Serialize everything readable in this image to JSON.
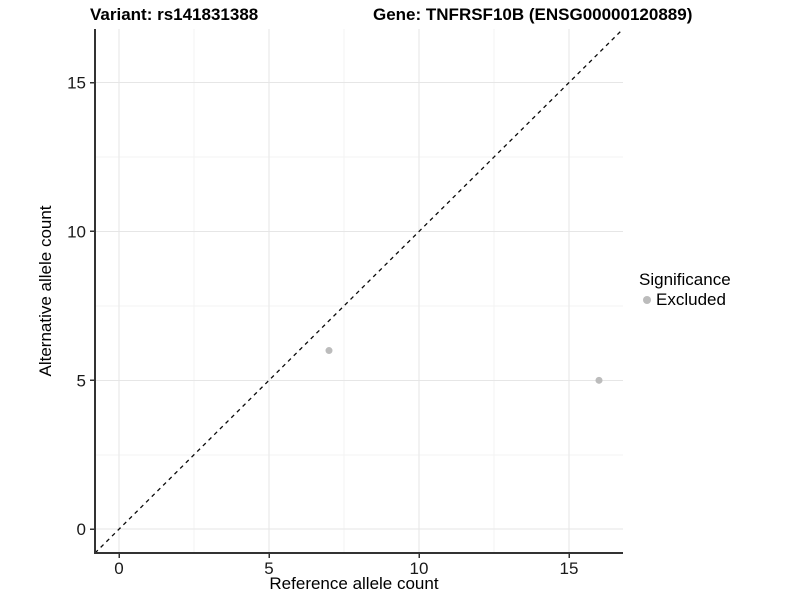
{
  "titles": {
    "variant": "Variant: rs141831388",
    "gene": "Gene: TNFRSF10B (ENSG00000120889)"
  },
  "chart_data": {
    "type": "scatter",
    "xlabel": "Reference allele count",
    "ylabel": "Alternative allele count",
    "xlim": [
      -0.8,
      16.8
    ],
    "ylim": [
      -0.8,
      16.8
    ],
    "major_breaks": [
      0,
      5,
      10,
      15
    ],
    "minor_breaks": [
      2.5,
      7.5,
      12.5
    ],
    "tick_labels": [
      "0",
      "5",
      "10",
      "15"
    ],
    "grid": true,
    "identity_line": {
      "shown": true,
      "style": "dashed",
      "from": -0.8,
      "to": 16.8
    },
    "series": [
      {
        "name": "Excluded",
        "points": [
          {
            "x": 7,
            "y": 6
          },
          {
            "x": 16,
            "y": 5
          }
        ]
      }
    ],
    "legend": {
      "position": "right",
      "title": "Significance",
      "items": [
        {
          "label": "Excluded",
          "color": "#bcbcbc"
        }
      ]
    },
    "colors": {
      "point": "#bcbcbc",
      "grid_major": "#e6e6e6",
      "grid_minor": "#f3f3f3",
      "axis_line": "#333333",
      "tick_mark": "#333333",
      "tick_text": "#1a1a1a",
      "identity_line": "#0a0a0a",
      "background": "#ffffff"
    }
  }
}
